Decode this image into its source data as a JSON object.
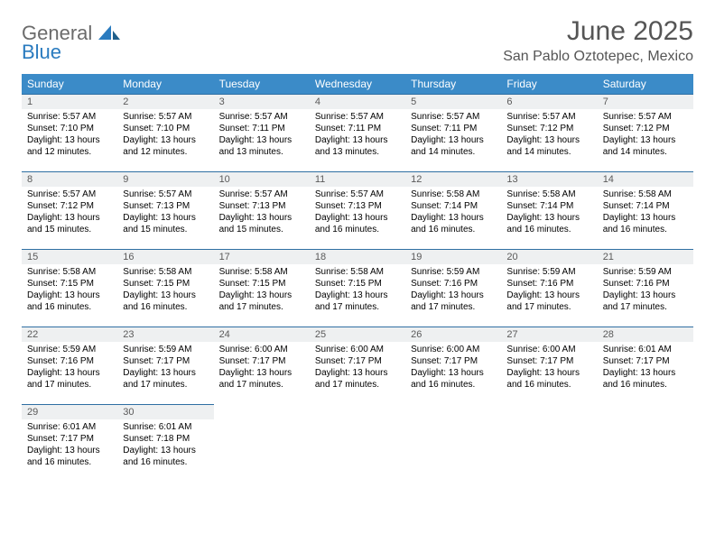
{
  "logo": {
    "general": "General",
    "blue": "Blue"
  },
  "title": "June 2025",
  "location": "San Pablo Oztotepec, Mexico",
  "weekdays": [
    "Sunday",
    "Monday",
    "Tuesday",
    "Wednesday",
    "Thursday",
    "Friday",
    "Saturday"
  ],
  "colors": {
    "header_bg": "#3b8bc8",
    "header_text": "#ffffff",
    "daynum_bg": "#eef0f1",
    "cell_border": "#2f6fa3",
    "title_text": "#555555",
    "logo_general": "#6b6b6b",
    "logo_blue": "#2a7bbf"
  },
  "days": [
    {
      "n": "1",
      "sr": "5:57 AM",
      "ss": "7:10 PM",
      "dm": "12"
    },
    {
      "n": "2",
      "sr": "5:57 AM",
      "ss": "7:10 PM",
      "dm": "12"
    },
    {
      "n": "3",
      "sr": "5:57 AM",
      "ss": "7:11 PM",
      "dm": "13"
    },
    {
      "n": "4",
      "sr": "5:57 AM",
      "ss": "7:11 PM",
      "dm": "13"
    },
    {
      "n": "5",
      "sr": "5:57 AM",
      "ss": "7:11 PM",
      "dm": "14"
    },
    {
      "n": "6",
      "sr": "5:57 AM",
      "ss": "7:12 PM",
      "dm": "14"
    },
    {
      "n": "7",
      "sr": "5:57 AM",
      "ss": "7:12 PM",
      "dm": "14"
    },
    {
      "n": "8",
      "sr": "5:57 AM",
      "ss": "7:12 PM",
      "dm": "15"
    },
    {
      "n": "9",
      "sr": "5:57 AM",
      "ss": "7:13 PM",
      "dm": "15"
    },
    {
      "n": "10",
      "sr": "5:57 AM",
      "ss": "7:13 PM",
      "dm": "15"
    },
    {
      "n": "11",
      "sr": "5:57 AM",
      "ss": "7:13 PM",
      "dm": "16"
    },
    {
      "n": "12",
      "sr": "5:58 AM",
      "ss": "7:14 PM",
      "dm": "16"
    },
    {
      "n": "13",
      "sr": "5:58 AM",
      "ss": "7:14 PM",
      "dm": "16"
    },
    {
      "n": "14",
      "sr": "5:58 AM",
      "ss": "7:14 PM",
      "dm": "16"
    },
    {
      "n": "15",
      "sr": "5:58 AM",
      "ss": "7:15 PM",
      "dm": "16"
    },
    {
      "n": "16",
      "sr": "5:58 AM",
      "ss": "7:15 PM",
      "dm": "16"
    },
    {
      "n": "17",
      "sr": "5:58 AM",
      "ss": "7:15 PM",
      "dm": "17"
    },
    {
      "n": "18",
      "sr": "5:58 AM",
      "ss": "7:15 PM",
      "dm": "17"
    },
    {
      "n": "19",
      "sr": "5:59 AM",
      "ss": "7:16 PM",
      "dm": "17"
    },
    {
      "n": "20",
      "sr": "5:59 AM",
      "ss": "7:16 PM",
      "dm": "17"
    },
    {
      "n": "21",
      "sr": "5:59 AM",
      "ss": "7:16 PM",
      "dm": "17"
    },
    {
      "n": "22",
      "sr": "5:59 AM",
      "ss": "7:16 PM",
      "dm": "17"
    },
    {
      "n": "23",
      "sr": "5:59 AM",
      "ss": "7:17 PM",
      "dm": "17"
    },
    {
      "n": "24",
      "sr": "6:00 AM",
      "ss": "7:17 PM",
      "dm": "17"
    },
    {
      "n": "25",
      "sr": "6:00 AM",
      "ss": "7:17 PM",
      "dm": "17"
    },
    {
      "n": "26",
      "sr": "6:00 AM",
      "ss": "7:17 PM",
      "dm": "16"
    },
    {
      "n": "27",
      "sr": "6:00 AM",
      "ss": "7:17 PM",
      "dm": "16"
    },
    {
      "n": "28",
      "sr": "6:01 AM",
      "ss": "7:17 PM",
      "dm": "16"
    },
    {
      "n": "29",
      "sr": "6:01 AM",
      "ss": "7:17 PM",
      "dm": "16"
    },
    {
      "n": "30",
      "sr": "6:01 AM",
      "ss": "7:18 PM",
      "dm": "16"
    }
  ],
  "labels": {
    "sunrise": "Sunrise: ",
    "sunset": "Sunset: ",
    "daylight_pre": "Daylight: 13 hours and ",
    "daylight_post": " minutes."
  }
}
